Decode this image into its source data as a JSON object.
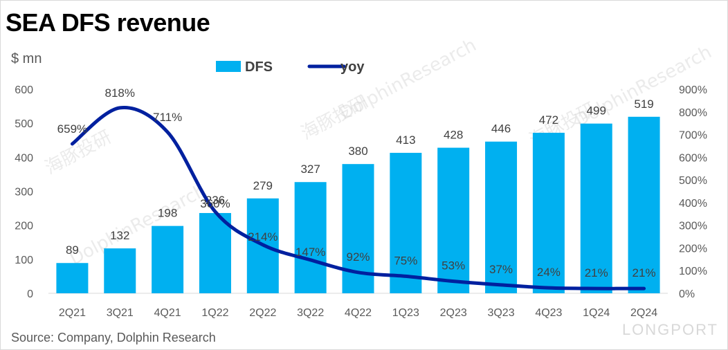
{
  "chart_data": {
    "type": "bar",
    "title": "SEA DFS revenue",
    "ylabel": "$ mn",
    "source": "Source: Company, Dolphin Research",
    "categories": [
      "2Q21",
      "3Q21",
      "4Q21",
      "1Q22",
      "2Q22",
      "3Q22",
      "4Q22",
      "1Q23",
      "2Q23",
      "3Q23",
      "4Q23",
      "1Q24",
      "2Q24"
    ],
    "series": [
      {
        "name": "DFS",
        "kind": "bar",
        "axis": "left",
        "color": "#00b0f0",
        "values": [
          89,
          132,
          198,
          236,
          279,
          327,
          380,
          413,
          428,
          446,
          472,
          499,
          519
        ]
      },
      {
        "name": "yoy",
        "kind": "line",
        "axis": "right",
        "color": "#00209f",
        "values": [
          659,
          818,
          711,
          360,
          214,
          147,
          92,
          75,
          53,
          37,
          24,
          21,
          21
        ],
        "labels": [
          "659%",
          "818%",
          "711%",
          "360%",
          "214%",
          "147%",
          "92%",
          "75%",
          "53%",
          "37%",
          "24%",
          "21%",
          "21%"
        ]
      }
    ],
    "ylim_left": [
      0,
      600
    ],
    "yticks_left": [
      "0",
      "100",
      "200",
      "300",
      "400",
      "500",
      "600"
    ],
    "ylim_right": [
      0,
      900
    ],
    "yticks_right": [
      "0%",
      "100%",
      "200%",
      "300%",
      "400%",
      "500%",
      "600%",
      "700%",
      "800%",
      "900%"
    ],
    "legend": {
      "position": "top-center",
      "items": [
        "DFS",
        "yoy"
      ]
    },
    "grid": false
  },
  "watermarks": [
    "海豚投研",
    "DolphinResearch",
    "LONGPORT"
  ]
}
